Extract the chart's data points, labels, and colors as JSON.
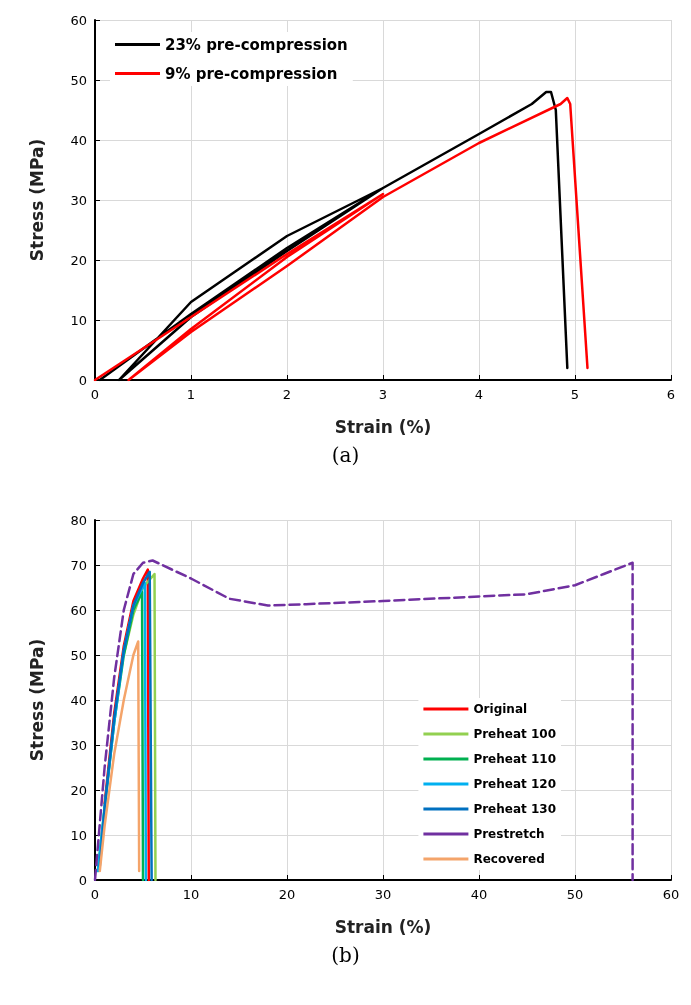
{
  "chart_data": [
    {
      "type": "line",
      "xlabel": "Strain (%)",
      "ylabel": "Stress (MPa)",
      "xlim": [
        0,
        6
      ],
      "ylim": [
        0,
        60
      ],
      "xticks": [
        0,
        1,
        2,
        3,
        4,
        5,
        6
      ],
      "yticks": [
        0,
        10,
        20,
        30,
        40,
        50,
        60
      ],
      "grid": true,
      "legend": "top left",
      "annotations": [
        "(a)"
      ],
      "series": [
        {
          "name": "23% pre-compression",
          "color": "#000000",
          "x": [
            0.05,
            1,
            2,
            3,
            2,
            1,
            0.25,
            1,
            2,
            3,
            4,
            4.55,
            4.7,
            4.75,
            4.8,
            4.92
          ],
          "values": [
            0,
            11,
            22,
            32,
            24,
            13,
            0,
            10.5,
            21.5,
            32,
            41,
            46,
            48,
            48,
            45,
            2
          ]
        },
        {
          "name": "9% pre-compression",
          "color": "#ff0000",
          "x": [
            0,
            1,
            2,
            3,
            2,
            1,
            0.35,
            1,
            2,
            3,
            4,
            4.85,
            4.92,
            4.95,
            5.13
          ],
          "values": [
            0,
            10.5,
            21,
            31,
            20.5,
            8.5,
            0,
            8,
            19,
            30.5,
            39.5,
            46,
            47,
            46,
            2
          ]
        }
      ]
    },
    {
      "type": "line",
      "xlabel": "Strain (%)",
      "ylabel": "Stress (MPa)",
      "xlim": [
        0,
        60
      ],
      "ylim": [
        0,
        80
      ],
      "xticks": [
        0,
        10,
        20,
        30,
        40,
        50,
        60
      ],
      "yticks": [
        0,
        10,
        20,
        30,
        40,
        50,
        60,
        70,
        80
      ],
      "grid": true,
      "legend": "bottom right",
      "annotations": [
        "(b)"
      ],
      "series": [
        {
          "name": "Original",
          "color": "#ff0000",
          "x": [
            1,
            2,
            3,
            4,
            5,
            5.5,
            5.6
          ],
          "values": [
            17,
            37,
            52,
            62,
            67,
            69,
            0
          ]
        },
        {
          "name": "Preheat 100",
          "color": "#92d050",
          "x": [
            3,
            4,
            5,
            6.2,
            6.3
          ],
          "values": [
            50,
            59,
            65,
            68,
            0
          ]
        },
        {
          "name": "Preheat 110",
          "color": "#00b050",
          "x": [
            0.3,
            1,
            2,
            3,
            4,
            4.9,
            5
          ],
          "values": [
            2,
            16,
            35,
            50,
            60,
            64,
            0
          ]
        },
        {
          "name": "Preheat 120",
          "color": "#00b0f0",
          "x": [
            0.3,
            1,
            2,
            3,
            4,
            5.2,
            5.3
          ],
          "values": [
            2,
            16,
            35,
            51,
            61,
            66,
            0
          ]
        },
        {
          "name": "Preheat 130",
          "color": "#0070c0",
          "x": [
            0.5,
            1,
            2,
            3,
            4,
            5,
            5.7,
            5.9
          ],
          "values": [
            3,
            16,
            36,
            51,
            61,
            66,
            68.5,
            0
          ]
        },
        {
          "name": "Prestretch",
          "color": "#7030a0",
          "line_style": "dashed",
          "x": [
            0,
            1,
            2,
            3,
            4,
            5,
            6,
            8,
            10,
            14,
            18,
            22,
            30,
            40,
            45,
            50,
            53,
            56,
            56
          ],
          "values": [
            0,
            25,
            45,
            60,
            68,
            70.5,
            71,
            69,
            67,
            62.5,
            61,
            61.3,
            62,
            63,
            63.5,
            65.5,
            68,
            70.5,
            0
          ]
        },
        {
          "name": "Recovered",
          "color": "#f4a46a",
          "x": [
            0.5,
            1,
            2,
            3,
            4,
            4.5,
            4.6
          ],
          "values": [
            2,
            12,
            28,
            40,
            50,
            53,
            2
          ]
        }
      ]
    }
  ]
}
